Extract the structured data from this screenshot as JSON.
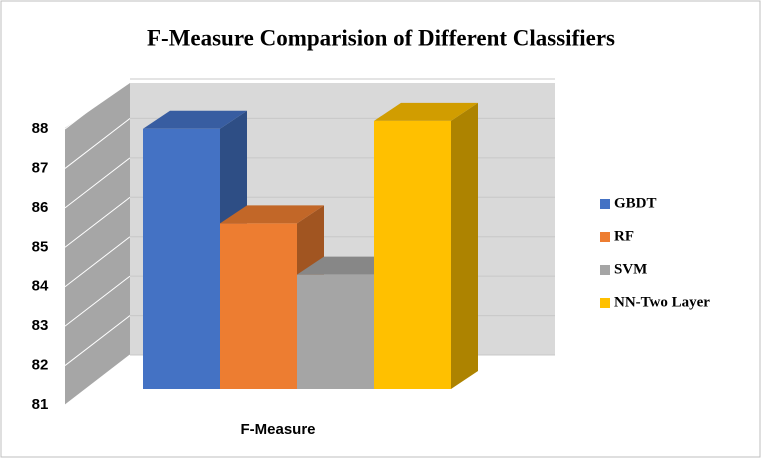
{
  "chart_data": {
    "type": "bar3d",
    "title": "F-Measure Comparision of Different Classifiers",
    "categories": [
      "F-Measure"
    ],
    "series": [
      {
        "name": "GBDT",
        "color": "#4472c4",
        "values": [
          87.6
        ]
      },
      {
        "name": "RF",
        "color": "#ed7d31",
        "values": [
          85.2
        ]
      },
      {
        "name": "SVM",
        "color": "#a5a5a5",
        "values": [
          83.9
        ]
      },
      {
        "name": "NN-Two Layer",
        "color": "#ffc000",
        "values": [
          87.8
        ]
      }
    ],
    "ylim": [
      81,
      88
    ],
    "yticks": [
      81,
      82,
      83,
      84,
      85,
      86,
      87,
      88
    ],
    "grid": true,
    "legend": "right"
  }
}
